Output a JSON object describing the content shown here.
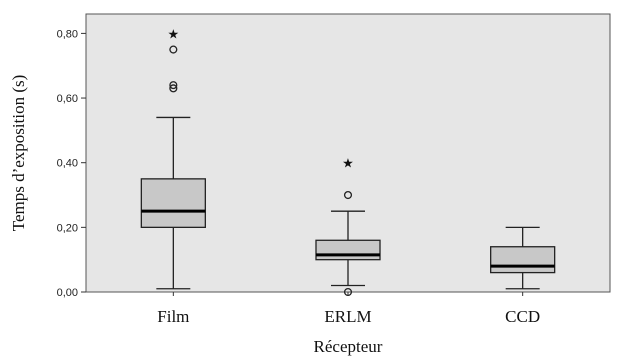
{
  "chart_data": {
    "type": "boxplot",
    "title": "",
    "xlabel": "Récepteur",
    "ylabel": "Temps d’exposition (s)",
    "ylim": [
      0.0,
      0.86
    ],
    "yticks": [
      "0,00",
      "0,20",
      "0,40",
      "0,60",
      "0,80"
    ],
    "ytick_values": [
      0.0,
      0.2,
      0.4,
      0.6,
      0.8
    ],
    "grid": false,
    "plot_background": "#e6e6e6",
    "box_fill": "#c8c8c8",
    "categories": [
      "Film",
      "ERLM",
      "CCD"
    ],
    "boxes": [
      {
        "category": "Film",
        "whisker_low": 0.01,
        "q1": 0.2,
        "median": 0.25,
        "q3": 0.35,
        "whisker_high": 0.54,
        "outliers": [
          0.63,
          0.64,
          0.75
        ],
        "extremes": [
          0.8
        ]
      },
      {
        "category": "ERLM",
        "whisker_low": 0.02,
        "q1": 0.1,
        "median": 0.115,
        "q3": 0.16,
        "whisker_high": 0.25,
        "outliers": [
          0.0,
          0.3
        ],
        "extremes": [
          0.4
        ]
      },
      {
        "category": "CCD",
        "whisker_low": 0.01,
        "q1": 0.06,
        "median": 0.08,
        "q3": 0.14,
        "whisker_high": 0.2,
        "outliers": [],
        "extremes": []
      }
    ]
  }
}
